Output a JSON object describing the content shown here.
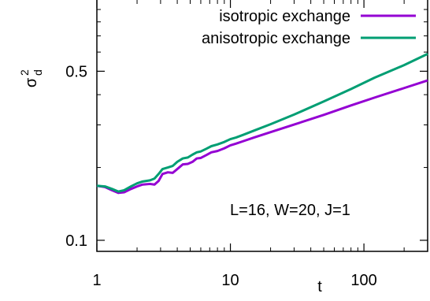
{
  "chart_data": {
    "type": "line",
    "xscale": "log",
    "yscale": "log",
    "xlim": [
      1,
      300
    ],
    "ylim": [
      0.09,
      1.0
    ],
    "xlabel": "t",
    "ylabel": {
      "base": "σ",
      "sup": "2",
      "sub": "d"
    },
    "xticks": [
      {
        "value": 1,
        "label": "1"
      },
      {
        "value": 10,
        "label": "10"
      },
      {
        "value": 100,
        "label": "100"
      }
    ],
    "yticks": [
      {
        "value": 0.1,
        "label": "0.1"
      },
      {
        "value": 0.5,
        "label": "0.5"
      }
    ],
    "legend_position": "top-right",
    "annotation": "L=16, W=20, J=1",
    "series": [
      {
        "name": "isotropic exchange",
        "color": "#9400d3",
        "points": [
          [
            1.0,
            0.168
          ],
          [
            1.15,
            0.166
          ],
          [
            1.3,
            0.161
          ],
          [
            1.45,
            0.157
          ],
          [
            1.6,
            0.158
          ],
          [
            1.8,
            0.163
          ],
          [
            2.0,
            0.167
          ],
          [
            2.2,
            0.17
          ],
          [
            2.5,
            0.171
          ],
          [
            2.7,
            0.17
          ],
          [
            2.9,
            0.176
          ],
          [
            3.1,
            0.188
          ],
          [
            3.4,
            0.191
          ],
          [
            3.7,
            0.19
          ],
          [
            4.0,
            0.197
          ],
          [
            4.4,
            0.206
          ],
          [
            4.8,
            0.207
          ],
          [
            5.2,
            0.211
          ],
          [
            5.6,
            0.218
          ],
          [
            6.0,
            0.219
          ],
          [
            6.6,
            0.225
          ],
          [
            7.2,
            0.231
          ],
          [
            8.0,
            0.234
          ],
          [
            9.0,
            0.24
          ],
          [
            10.0,
            0.247
          ],
          [
            11.0,
            0.251
          ],
          [
            12.5,
            0.257
          ],
          [
            15.0,
            0.266
          ],
          [
            20.0,
            0.28
          ],
          [
            30.0,
            0.301
          ],
          [
            50.0,
            0.33
          ],
          [
            80.0,
            0.361
          ],
          [
            120.0,
            0.389
          ],
          [
            200.0,
            0.426
          ],
          [
            300.0,
            0.458
          ]
        ]
      },
      {
        "name": "anisotropic exchange",
        "color": "#009e73",
        "points": [
          [
            1.0,
            0.168
          ],
          [
            1.15,
            0.167
          ],
          [
            1.3,
            0.163
          ],
          [
            1.45,
            0.159
          ],
          [
            1.6,
            0.161
          ],
          [
            1.8,
            0.167
          ],
          [
            2.0,
            0.172
          ],
          [
            2.2,
            0.175
          ],
          [
            2.5,
            0.177
          ],
          [
            2.7,
            0.18
          ],
          [
            2.9,
            0.188
          ],
          [
            3.1,
            0.197
          ],
          [
            3.4,
            0.2
          ],
          [
            3.7,
            0.203
          ],
          [
            4.0,
            0.211
          ],
          [
            4.4,
            0.218
          ],
          [
            4.8,
            0.22
          ],
          [
            5.2,
            0.226
          ],
          [
            5.6,
            0.231
          ],
          [
            6.0,
            0.233
          ],
          [
            6.6,
            0.239
          ],
          [
            7.2,
            0.245
          ],
          [
            8.0,
            0.249
          ],
          [
            9.0,
            0.255
          ],
          [
            10.0,
            0.262
          ],
          [
            11.0,
            0.266
          ],
          [
            12.5,
            0.273
          ],
          [
            15.0,
            0.284
          ],
          [
            20.0,
            0.302
          ],
          [
            30.0,
            0.331
          ],
          [
            50.0,
            0.375
          ],
          [
            80.0,
            0.422
          ],
          [
            120.0,
            0.47
          ],
          [
            200.0,
            0.53
          ],
          [
            300.0,
            0.59
          ]
        ]
      }
    ]
  }
}
